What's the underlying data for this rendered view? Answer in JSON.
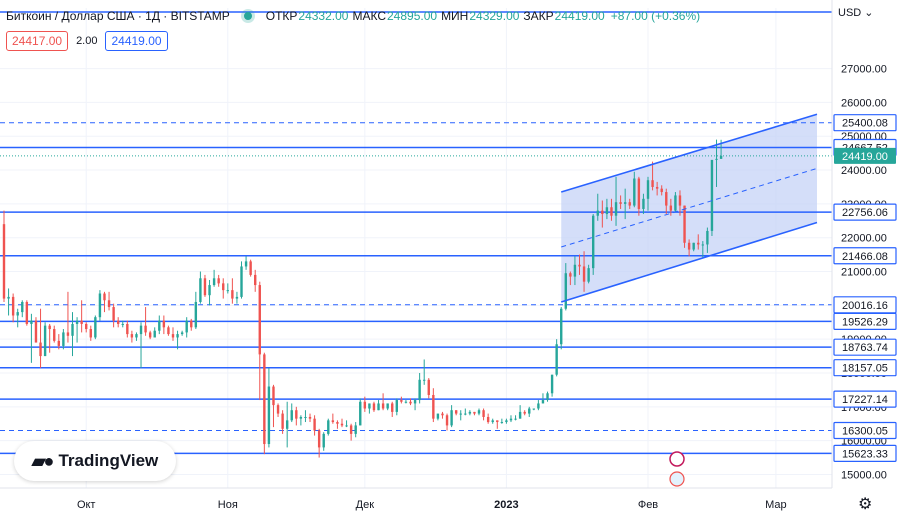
{
  "header": {
    "symbol": "Биткоин / Доллар США · 1Д · BITSTAMP",
    "open_label": "ОТКР",
    "open_value": "24332.00",
    "high_label": "МАКС",
    "high_value": "24895.00",
    "low_label": "МИН",
    "low_value": "24329.00",
    "close_label": "ЗАКР",
    "close_value": "24419.00",
    "change": "+87.00 (+0.36%)"
  },
  "quote": {
    "sell": "24417.00",
    "spread": "2.00",
    "buy": "24419.00"
  },
  "currency_label": "USD",
  "logo_text": "TradingView",
  "colors": {
    "up": "#26a69a",
    "down": "#ef5350",
    "level": "#2962ff",
    "channel_fill": "#c5d3f7"
  },
  "chart_data": {
    "type": "candlestick",
    "y_ticks": [
      15000,
      16000,
      17000,
      18000,
      19000,
      20000,
      21000,
      22000,
      23000,
      24000,
      25000,
      26000,
      27000
    ],
    "x_labels": [
      "Окт",
      "Ноя",
      "Дек",
      "2023",
      "Фев",
      "Мар"
    ],
    "ylim": [
      14600,
      28200
    ],
    "last_price": "24419.00",
    "solid_levels": [
      "24667.52",
      "22756.06",
      "21466.08",
      "19526.29",
      "18763.74",
      "18157.05",
      "17227.14",
      "15623.33"
    ],
    "dashed_levels": [
      "25400.08",
      "20016.16",
      "16300.05"
    ],
    "channel": {
      "start_date": "2023-01-13",
      "end_date": "2023-03-10",
      "upper_start": 23350,
      "upper_end": 25650,
      "lower_start": 20100,
      "lower_end": 22450
    },
    "candles": [
      [
        "2022-09-13",
        22400,
        22800,
        20100,
        20200
      ],
      [
        "2022-09-14",
        20200,
        20500,
        19700,
        20250
      ],
      [
        "2022-09-15",
        20250,
        20350,
        19500,
        19700
      ],
      [
        "2022-09-16",
        19700,
        19900,
        19350,
        19800
      ],
      [
        "2022-09-17",
        19800,
        20150,
        19650,
        20100
      ],
      [
        "2022-09-18",
        20100,
        20150,
        19400,
        19450
      ],
      [
        "2022-09-19",
        19450,
        19750,
        18300,
        19550
      ],
      [
        "2022-09-20",
        19550,
        19650,
        18900,
        18900
      ],
      [
        "2022-09-21",
        18900,
        19900,
        18150,
        18500
      ],
      [
        "2022-09-22",
        18500,
        19500,
        18500,
        19400
      ],
      [
        "2022-09-23",
        19400,
        19450,
        18600,
        19300
      ],
      [
        "2022-09-24",
        19300,
        19400,
        18900,
        18950
      ],
      [
        "2022-09-25",
        18950,
        19150,
        18700,
        18800
      ],
      [
        "2022-09-26",
        18800,
        19300,
        18700,
        19200
      ],
      [
        "2022-09-27",
        19200,
        20400,
        18900,
        19100
      ],
      [
        "2022-09-28",
        19100,
        19800,
        18500,
        19450
      ],
      [
        "2022-09-29",
        19450,
        19650,
        18900,
        19550
      ],
      [
        "2022-09-30",
        19550,
        20150,
        19200,
        19450
      ],
      [
        "2022-10-01",
        19450,
        19500,
        19200,
        19300
      ],
      [
        "2022-10-02",
        19300,
        19400,
        18950,
        19050
      ],
      [
        "2022-10-03",
        19050,
        19700,
        19000,
        19650
      ],
      [
        "2022-10-04",
        19650,
        20450,
        19550,
        20350
      ],
      [
        "2022-10-05",
        20350,
        20400,
        19800,
        20150
      ],
      [
        "2022-10-06",
        20150,
        20400,
        19850,
        19950
      ],
      [
        "2022-10-07",
        19950,
        20050,
        19350,
        19550
      ],
      [
        "2022-10-08",
        19550,
        19650,
        19350,
        19450
      ],
      [
        "2022-10-09",
        19450,
        19550,
        19350,
        19450
      ],
      [
        "2022-10-10",
        19450,
        19550,
        19050,
        19150
      ],
      [
        "2022-10-11",
        19150,
        19250,
        18900,
        19050
      ],
      [
        "2022-10-12",
        19050,
        19200,
        18950,
        19150
      ],
      [
        "2022-10-13",
        19150,
        19500,
        18150,
        19400
      ],
      [
        "2022-10-14",
        19400,
        19950,
        19100,
        19200
      ],
      [
        "2022-10-15",
        19200,
        19250,
        19000,
        19050
      ],
      [
        "2022-10-16",
        19050,
        19350,
        19050,
        19250
      ],
      [
        "2022-10-17",
        19250,
        19700,
        19150,
        19550
      ],
      [
        "2022-10-18",
        19550,
        19700,
        19150,
        19350
      ],
      [
        "2022-10-19",
        19350,
        19400,
        19100,
        19150
      ],
      [
        "2022-10-20",
        19150,
        19350,
        18950,
        19050
      ],
      [
        "2022-10-21",
        19050,
        19250,
        18700,
        19150
      ],
      [
        "2022-10-22",
        19150,
        19250,
        19100,
        19200
      ],
      [
        "2022-10-23",
        19200,
        19650,
        19050,
        19550
      ],
      [
        "2022-10-24",
        19550,
        19600,
        19250,
        19350
      ],
      [
        "2022-10-25",
        19350,
        20400,
        19300,
        20100
      ],
      [
        "2022-10-26",
        20100,
        21000,
        20050,
        20800
      ],
      [
        "2022-10-27",
        20800,
        20900,
        20250,
        20300
      ],
      [
        "2022-10-28",
        20300,
        20750,
        20000,
        20600
      ],
      [
        "2022-10-29",
        20600,
        21050,
        20550,
        20800
      ],
      [
        "2022-10-30",
        20800,
        20900,
        20550,
        20650
      ],
      [
        "2022-10-31",
        20650,
        20800,
        20200,
        20450
      ],
      [
        "2022-11-01",
        20450,
        20650,
        20350,
        20450
      ],
      [
        "2022-11-02",
        20450,
        20800,
        20050,
        20200
      ],
      [
        "2022-11-03",
        20200,
        20400,
        20050,
        20250
      ],
      [
        "2022-11-04",
        20250,
        21300,
        20200,
        21150
      ],
      [
        "2022-11-05",
        21150,
        21450,
        21050,
        21300
      ],
      [
        "2022-11-06",
        21300,
        21350,
        20850,
        20900
      ],
      [
        "2022-11-07",
        20900,
        21050,
        20400,
        20600
      ],
      [
        "2022-11-08",
        20600,
        20700,
        17200,
        18550
      ],
      [
        "2022-11-09",
        18550,
        18600,
        15600,
        15900
      ],
      [
        "2022-11-10",
        15900,
        18150,
        15800,
        17600
      ],
      [
        "2022-11-11",
        17600,
        17650,
        16400,
        17050
      ],
      [
        "2022-11-12",
        17050,
        17100,
        16700,
        16800
      ],
      [
        "2022-11-13",
        16800,
        16900,
        16200,
        16350
      ],
      [
        "2022-11-14",
        16350,
        17150,
        15800,
        16600
      ],
      [
        "2022-11-15",
        16600,
        17100,
        16550,
        16900
      ],
      [
        "2022-11-16",
        16900,
        17000,
        16450,
        16650
      ],
      [
        "2022-11-17",
        16650,
        16750,
        16450,
        16700
      ],
      [
        "2022-11-18",
        16700,
        16900,
        16550,
        16700
      ],
      [
        "2022-11-19",
        16700,
        16800,
        16550,
        16650
      ],
      [
        "2022-11-20",
        16650,
        16750,
        16150,
        16300
      ],
      [
        "2022-11-21",
        16300,
        16350,
        15500,
        15800
      ],
      [
        "2022-11-22",
        15800,
        16250,
        15700,
        16200
      ],
      [
        "2022-11-23",
        16200,
        16650,
        16150,
        16600
      ],
      [
        "2022-11-24",
        16600,
        16800,
        16500,
        16550
      ],
      [
        "2022-11-25",
        16550,
        16600,
        16350,
        16500
      ],
      [
        "2022-11-26",
        16500,
        16650,
        16400,
        16450
      ],
      [
        "2022-11-27",
        16450,
        16600,
        16400,
        16450
      ],
      [
        "2022-11-28",
        16450,
        16500,
        16000,
        16200
      ],
      [
        "2022-11-29",
        16200,
        16550,
        16100,
        16450
      ],
      [
        "2022-11-30",
        16450,
        17250,
        16450,
        17150
      ],
      [
        "2022-12-01",
        17150,
        17300,
        16850,
        16950
      ],
      [
        "2022-12-02",
        16950,
        17100,
        16800,
        17100
      ],
      [
        "2022-12-03",
        17100,
        17150,
        16850,
        16900
      ],
      [
        "2022-12-04",
        16900,
        17200,
        16900,
        17100
      ],
      [
        "2022-12-05",
        17100,
        17400,
        16900,
        16950
      ],
      [
        "2022-12-06",
        16950,
        17100,
        16900,
        17100
      ],
      [
        "2022-12-07",
        17100,
        17150,
        16700,
        16850
      ],
      [
        "2022-12-08",
        16850,
        17250,
        16750,
        17200
      ],
      [
        "2022-12-09",
        17200,
        17300,
        17100,
        17150
      ],
      [
        "2022-12-10",
        17150,
        17200,
        17100,
        17150
      ],
      [
        "2022-12-11",
        17150,
        17250,
        17050,
        17100
      ],
      [
        "2022-12-12",
        17100,
        17250,
        16900,
        17200
      ],
      [
        "2022-12-13",
        17200,
        18000,
        17100,
        17800
      ],
      [
        "2022-12-14",
        17800,
        18400,
        17650,
        17800
      ],
      [
        "2022-12-15",
        17800,
        17850,
        17250,
        17350
      ],
      [
        "2022-12-16",
        17350,
        17550,
        16550,
        16650
      ],
      [
        "2022-12-17",
        16650,
        16800,
        16600,
        16800
      ],
      [
        "2022-12-18",
        16800,
        16850,
        16650,
        16750
      ],
      [
        "2022-12-19",
        16750,
        16800,
        16300,
        16450
      ],
      [
        "2022-12-20",
        16450,
        17050,
        16400,
        16900
      ],
      [
        "2022-12-21",
        16900,
        16900,
        16750,
        16800
      ],
      [
        "2022-12-22",
        16800,
        16900,
        16600,
        16800
      ],
      [
        "2022-12-23",
        16800,
        16950,
        16750,
        16800
      ],
      [
        "2022-12-24",
        16800,
        16900,
        16750,
        16850
      ],
      [
        "2022-12-25",
        16850,
        16850,
        16750,
        16800
      ],
      [
        "2022-12-26",
        16800,
        16950,
        16750,
        16900
      ],
      [
        "2022-12-27",
        16900,
        16950,
        16600,
        16700
      ],
      [
        "2022-12-28",
        16700,
        16800,
        16500,
        16550
      ],
      [
        "2022-12-29",
        16550,
        16650,
        16500,
        16600
      ],
      [
        "2022-12-30",
        16600,
        16600,
        16350,
        16550
      ],
      [
        "2022-12-31",
        16550,
        16650,
        16500,
        16550
      ],
      [
        "2023-01-01",
        16550,
        16650,
        16500,
        16600
      ],
      [
        "2023-01-02",
        16600,
        16750,
        16550,
        16650
      ],
      [
        "2023-01-03",
        16650,
        16750,
        16600,
        16650
      ],
      [
        "2023-01-04",
        16650,
        17050,
        16650,
        16850
      ],
      [
        "2023-01-05",
        16850,
        16900,
        16750,
        16800
      ],
      [
        "2023-01-06",
        16800,
        17000,
        16700,
        16950
      ],
      [
        "2023-01-07",
        16950,
        16950,
        16900,
        16950
      ],
      [
        "2023-01-08",
        16950,
        17200,
        16900,
        17100
      ],
      [
        "2023-01-09",
        17100,
        17400,
        17100,
        17200
      ],
      [
        "2023-01-10",
        17200,
        17450,
        17150,
        17400
      ],
      [
        "2023-01-11",
        17400,
        17950,
        17300,
        17950
      ],
      [
        "2023-01-12",
        17950,
        19000,
        17900,
        18850
      ],
      [
        "2023-01-13",
        18850,
        19950,
        18700,
        19900
      ],
      [
        "2023-01-14",
        19900,
        21250,
        19850,
        20950
      ],
      [
        "2023-01-15",
        20950,
        21000,
        20600,
        20850
      ],
      [
        "2023-01-16",
        20850,
        21450,
        20600,
        21200
      ],
      [
        "2023-01-17",
        21200,
        21500,
        20900,
        21150
      ],
      [
        "2023-01-18",
        21150,
        21600,
        20400,
        20700
      ],
      [
        "2023-01-19",
        20700,
        21200,
        20650,
        21100
      ],
      [
        "2023-01-20",
        21100,
        22700,
        20900,
        22650
      ],
      [
        "2023-01-21",
        22650,
        23300,
        22500,
        22800
      ],
      [
        "2023-01-22",
        22800,
        23100,
        22300,
        22700
      ],
      [
        "2023-01-23",
        22700,
        23150,
        22550,
        22900
      ],
      [
        "2023-01-24",
        22900,
        23150,
        22500,
        22650
      ],
      [
        "2023-01-25",
        22650,
        23800,
        22350,
        23050
      ],
      [
        "2023-01-26",
        23050,
        23250,
        22850,
        23000
      ],
      [
        "2023-01-27",
        23000,
        23450,
        22550,
        23050
      ],
      [
        "2023-01-28",
        23050,
        23150,
        22850,
        22950
      ],
      [
        "2023-01-29",
        22950,
        23950,
        22900,
        23750
      ],
      [
        "2023-01-30",
        23750,
        23800,
        22650,
        22850
      ],
      [
        "2023-01-31",
        22850,
        23300,
        22700,
        23150
      ],
      [
        "2023-02-01",
        23150,
        23800,
        22800,
        23700
      ],
      [
        "2023-02-02",
        23700,
        24250,
        23400,
        23500
      ],
      [
        "2023-02-03",
        23500,
        23650,
        23250,
        23450
      ],
      [
        "2023-02-04",
        23450,
        23550,
        23250,
        23350
      ],
      [
        "2023-02-05",
        23350,
        23450,
        22700,
        22950
      ],
      [
        "2023-02-06",
        22950,
        23150,
        22650,
        22800
      ],
      [
        "2023-02-07",
        22800,
        23350,
        22750,
        23250
      ],
      [
        "2023-02-08",
        23250,
        23400,
        22650,
        22950
      ],
      [
        "2023-02-09",
        22950,
        22950,
        21700,
        21850
      ],
      [
        "2023-02-10",
        21850,
        21950,
        21450,
        21650
      ],
      [
        "2023-02-11",
        21650,
        21850,
        21600,
        21850
      ],
      [
        "2023-02-12",
        21850,
        22100,
        21650,
        21800
      ],
      [
        "2023-02-13",
        21800,
        21900,
        21400,
        21800
      ],
      [
        "2023-02-14",
        21800,
        22300,
        21550,
        22200
      ],
      [
        "2023-02-15",
        22200,
        24300,
        22050,
        24300
      ],
      [
        "2023-02-16",
        24300,
        24900,
        23500,
        24332
      ],
      [
        "2023-02-17",
        24332,
        24895,
        24329,
        24419
      ]
    ]
  }
}
